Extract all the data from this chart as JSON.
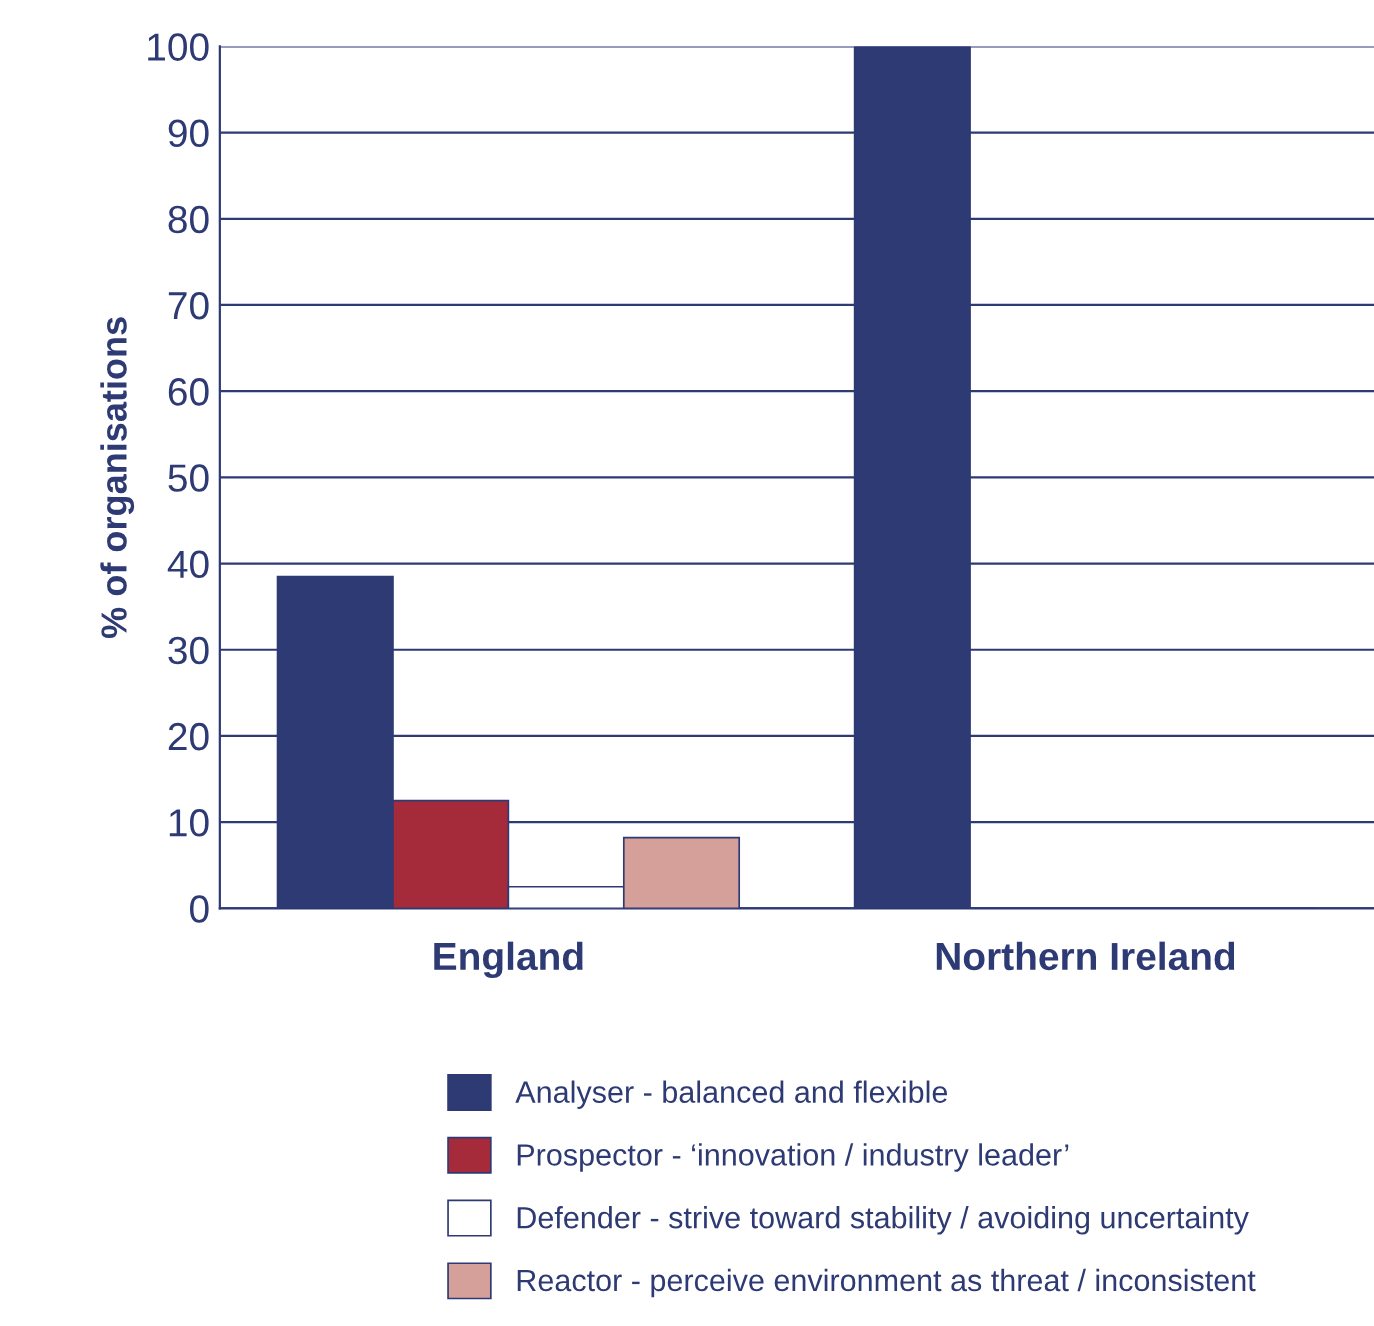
{
  "chart_data": {
    "type": "bar",
    "ylabel": "% of organisations",
    "categories": [
      "England",
      "Northern Ireland"
    ],
    "series": [
      {
        "name": "Analyser - balanced and flexible",
        "color": "#2e3a74",
        "values": [
          38.5,
          100
        ]
      },
      {
        "name": "Prospector - ‘innovation / industry leader’",
        "color": "#a52a3a",
        "values": [
          12.5,
          0
        ]
      },
      {
        "name": "Defender - strive toward stability / avoiding uncertainty",
        "color": "#ffffff",
        "values": [
          2.5,
          0
        ]
      },
      {
        "name": "Reactor - perceive environment as threat / inconsistent",
        "color": "#d5a09a",
        "values": [
          8.2,
          0
        ]
      }
    ],
    "ylim": [
      0,
      100
    ],
    "yticks": [
      0,
      10,
      20,
      30,
      40,
      50,
      60,
      70,
      80,
      90,
      100
    ],
    "grid": "y",
    "legend": "bottom"
  }
}
